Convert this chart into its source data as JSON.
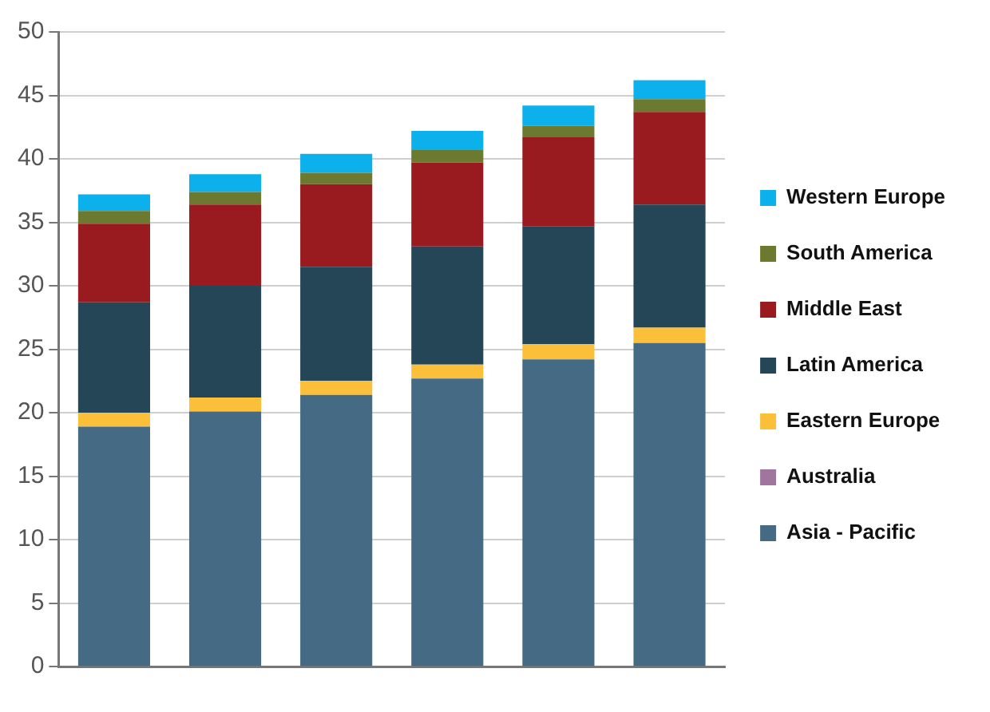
{
  "chart_data": {
    "type": "bar",
    "stacked": true,
    "categories": [
      null,
      null,
      null,
      null,
      null,
      null
    ],
    "series": [
      {
        "name": "Asia - Pacific",
        "color": "#446a84",
        "values": [
          18.9,
          20.1,
          21.4,
          22.7,
          24.2,
          25.5
        ]
      },
      {
        "name": "Australia",
        "color": "#a0769e",
        "values": [
          0,
          0,
          0,
          0,
          0,
          0
        ]
      },
      {
        "name": "Eastern Europe",
        "color": "#fbbf3a",
        "values": [
          1.1,
          1.1,
          1.1,
          1.1,
          1.2,
          1.2
        ]
      },
      {
        "name": "Latin America",
        "color": "#244657",
        "values": [
          8.7,
          8.8,
          9.0,
          9.3,
          9.3,
          9.7
        ]
      },
      {
        "name": "Middle East",
        "color": "#9a1b1f",
        "values": [
          6.2,
          6.4,
          6.5,
          6.6,
          7.0,
          7.3
        ]
      },
      {
        "name": "South America",
        "color": "#6b7a2e",
        "values": [
          1.0,
          1.0,
          0.9,
          1.0,
          0.9,
          1.0
        ]
      },
      {
        "name": "Western Europe",
        "color": "#0cb0ea",
        "values": [
          1.3,
          1.4,
          1.5,
          1.5,
          1.6,
          1.5
        ]
      }
    ],
    "ylim": [
      0,
      50
    ],
    "yticks": [
      0,
      5,
      10,
      15,
      20,
      25,
      30,
      35,
      40,
      45,
      50
    ],
    "grid": "y",
    "legend": "right"
  }
}
